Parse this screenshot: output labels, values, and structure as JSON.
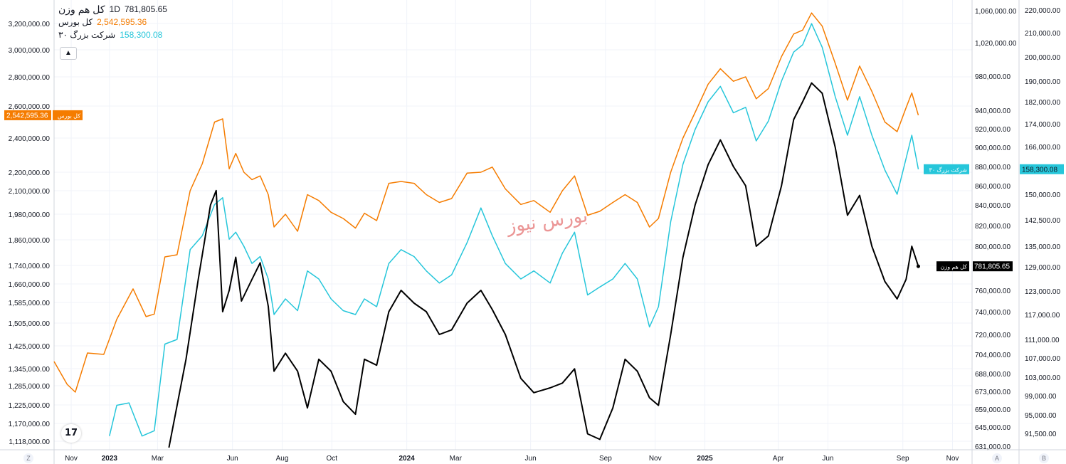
{
  "legend": {
    "main_title": "کل هم وزن",
    "interval": "1D",
    "main_value": "781,805.65",
    "series2_name": "کل بورس",
    "series2_value": "2,542,595.36",
    "series3_name": "شرکت بزرگ ۳۰",
    "series3_value": "158,300.08",
    "collapse_icon": "chevron-up-icon"
  },
  "watermark": "بورس نیوز",
  "corner_buttons": {
    "left": "Z",
    "mid": "A",
    "right": "B"
  },
  "colors": {
    "kol_boors": "#f57c00",
    "bozorg30": "#26c6da",
    "ham_vazn": "#000000",
    "grid": "#f0f3fa"
  },
  "chart_data": {
    "type": "line",
    "x_labels": [
      "Nov",
      "2023",
      "Mar",
      "Jun",
      "Aug",
      "Oct",
      "2024",
      "Mar",
      "Jun",
      "Sep",
      "Nov",
      "2025",
      "Apr",
      "Jun",
      "Sep",
      "Nov"
    ],
    "x_dates": [
      "2022-11-15",
      "2023-01-01",
      "2023-03-01",
      "2023-06-01",
      "2023-08-01",
      "2023-10-01",
      "2024-01-01",
      "2024-03-01",
      "2024-06-01",
      "2024-09-01",
      "2024-11-01",
      "2025-01-01",
      "2025-04-01",
      "2025-06-01",
      "2025-09-01",
      "2025-11-01"
    ],
    "left_axis_ticks": [
      "1,118,000.00",
      "1,170,000.00",
      "1,225,000.00",
      "1,285,000.00",
      "1,345,000.00",
      "1,425,000.00",
      "1,505,000.00",
      "1,585,000.00",
      "1,660,000.00",
      "1,740,000.00",
      "1,860,000.00",
      "1,980,000.00",
      "2,100,000.00",
      "2,200,000.00",
      "2,400,000.00",
      "2,600,000.00",
      "2,800,000.00",
      "3,000,000.00",
      "3,200,000.00"
    ],
    "left_tick_values": [
      1118000,
      1170000,
      1225000,
      1285000,
      1345000,
      1425000,
      1505000,
      1585000,
      1660000,
      1740000,
      1860000,
      1980000,
      2100000,
      2200000,
      2400000,
      2600000,
      2800000,
      3000000,
      3200000
    ],
    "right_a_ticks": [
      "631,000.00",
      "645,000.00",
      "659,000.00",
      "673,000.00",
      "688,000.00",
      "704,000.00",
      "720,000.00",
      "740,000.00",
      "760,000.00",
      "800,000.00",
      "820,000.00",
      "840,000.00",
      "860,000.00",
      "880,000.00",
      "900,000.00",
      "920,000.00",
      "940,000.00",
      "980,000.00",
      "1,020,000.00",
      "1,060,000.00"
    ],
    "right_a_values": [
      631000,
      645000,
      659000,
      673000,
      688000,
      704000,
      720000,
      740000,
      760000,
      800000,
      820000,
      840000,
      860000,
      880000,
      900000,
      920000,
      940000,
      980000,
      1020000,
      1060000
    ],
    "right_b_ticks": [
      "91,500.00",
      "95,000.00",
      "99,000.00",
      "103,000.00",
      "107,000.00",
      "111,000.00",
      "117,000.00",
      "123,000.00",
      "129,000.00",
      "135,000.00",
      "142,500.00",
      "150,000.00",
      "158,000.00",
      "166,000.00",
      "174,000.00",
      "182,000.00",
      "190,000.00",
      "200,000.00",
      "210,000.00",
      "220,000.00"
    ],
    "right_b_values": [
      91500,
      95000,
      99000,
      103000,
      107000,
      111000,
      117000,
      123000,
      129000,
      135000,
      142500,
      150000,
      158000,
      166000,
      174000,
      182000,
      190000,
      200000,
      210000,
      220000
    ],
    "series": [
      {
        "name": "کل بورس",
        "axis": "left",
        "last_label": "2,542,595.36",
        "last_tag": "کل بورس",
        "points": [
          [
            "2022-10-25",
            1370000
          ],
          [
            "2022-11-10",
            1290000
          ],
          [
            "2022-11-20",
            1265000
          ],
          [
            "2022-12-05",
            1400000
          ],
          [
            "2022-12-25",
            1395000
          ],
          [
            "2023-01-10",
            1520000
          ],
          [
            "2023-01-30",
            1640000
          ],
          [
            "2023-02-15",
            1530000
          ],
          [
            "2023-02-25",
            1540000
          ],
          [
            "2023-03-10",
            1780000
          ],
          [
            "2023-03-25",
            1790000
          ],
          [
            "2023-04-10",
            2100000
          ],
          [
            "2023-04-25",
            2250000
          ],
          [
            "2023-05-10",
            2500000
          ],
          [
            "2023-05-20",
            2520000
          ],
          [
            "2023-05-28",
            2220000
          ],
          [
            "2023-06-05",
            2310000
          ],
          [
            "2023-06-15",
            2200000
          ],
          [
            "2023-06-25",
            2160000
          ],
          [
            "2023-07-05",
            2180000
          ],
          [
            "2023-07-15",
            2080000
          ],
          [
            "2023-07-22",
            1920000
          ],
          [
            "2023-08-05",
            1980000
          ],
          [
            "2023-08-20",
            1900000
          ],
          [
            "2023-09-01",
            2080000
          ],
          [
            "2023-09-15",
            2050000
          ],
          [
            "2023-09-30",
            1990000
          ],
          [
            "2023-10-15",
            1960000
          ],
          [
            "2023-10-30",
            1915000
          ],
          [
            "2023-11-10",
            1985000
          ],
          [
            "2023-11-25",
            1950000
          ],
          [
            "2023-12-10",
            2140000
          ],
          [
            "2023-12-25",
            2150000
          ],
          [
            "2024-01-10",
            2140000
          ],
          [
            "2024-01-25",
            2080000
          ],
          [
            "2024-02-10",
            2040000
          ],
          [
            "2024-02-25",
            2060000
          ],
          [
            "2024-03-15",
            2195000
          ],
          [
            "2024-04-01",
            2200000
          ],
          [
            "2024-04-15",
            2230000
          ],
          [
            "2024-05-01",
            2110000
          ],
          [
            "2024-05-20",
            2030000
          ],
          [
            "2024-06-05",
            2050000
          ],
          [
            "2024-06-25",
            1990000
          ],
          [
            "2024-07-10",
            2100000
          ],
          [
            "2024-07-25",
            2180000
          ],
          [
            "2024-08-10",
            1975000
          ],
          [
            "2024-08-25",
            1995000
          ],
          [
            "2024-09-10",
            2040000
          ],
          [
            "2024-09-25",
            2080000
          ],
          [
            "2024-10-10",
            2040000
          ],
          [
            "2024-10-25",
            1920000
          ],
          [
            "2024-11-05",
            1960000
          ],
          [
            "2024-11-20",
            2200000
          ],
          [
            "2024-12-05",
            2400000
          ],
          [
            "2024-12-20",
            2560000
          ],
          [
            "2025-01-05",
            2750000
          ],
          [
            "2025-01-20",
            2860000
          ],
          [
            "2025-02-05",
            2770000
          ],
          [
            "2025-02-20",
            2800000
          ],
          [
            "2025-03-05",
            2650000
          ],
          [
            "2025-03-20",
            2720000
          ],
          [
            "2025-04-05",
            2950000
          ],
          [
            "2025-04-20",
            3120000
          ],
          [
            "2025-05-01",
            3150000
          ],
          [
            "2025-05-12",
            3280000
          ],
          [
            "2025-05-25",
            3180000
          ],
          [
            "2025-06-10",
            2900000
          ],
          [
            "2025-06-25",
            2640000
          ],
          [
            "2025-07-10",
            2880000
          ],
          [
            "2025-07-25",
            2700000
          ],
          [
            "2025-08-10",
            2500000
          ],
          [
            "2025-08-25",
            2440000
          ],
          [
            "2025-09-05",
            2590000
          ],
          [
            "2025-09-12",
            2690000
          ],
          [
            "2025-09-20",
            2542595
          ]
        ]
      },
      {
        "name": "شرکت بزرگ ۳۰",
        "axis": "right_b",
        "last_label": "158,300.08",
        "last_tag": "شرکت بزرگ ۳۰",
        "points": [
          [
            "2023-01-01",
            91000
          ],
          [
            "2023-01-10",
            97000
          ],
          [
            "2023-01-25",
            97500
          ],
          [
            "2023-02-10",
            91000
          ],
          [
            "2023-02-25",
            92000
          ],
          [
            "2023-03-10",
            110000
          ],
          [
            "2023-03-25",
            111000
          ],
          [
            "2023-04-10",
            134000
          ],
          [
            "2023-04-25",
            138000
          ],
          [
            "2023-05-10",
            147000
          ],
          [
            "2023-05-20",
            149000
          ],
          [
            "2023-05-28",
            137000
          ],
          [
            "2023-06-05",
            139000
          ],
          [
            "2023-06-15",
            135000
          ],
          [
            "2023-06-25",
            130000
          ],
          [
            "2023-07-05",
            132000
          ],
          [
            "2023-07-15",
            126000
          ],
          [
            "2023-07-22",
            117000
          ],
          [
            "2023-08-05",
            121000
          ],
          [
            "2023-08-20",
            118000
          ],
          [
            "2023-09-01",
            128000
          ],
          [
            "2023-09-15",
            126000
          ],
          [
            "2023-09-30",
            121000
          ],
          [
            "2023-10-15",
            118000
          ],
          [
            "2023-10-30",
            117000
          ],
          [
            "2023-11-10",
            121000
          ],
          [
            "2023-11-25",
            119000
          ],
          [
            "2023-12-10",
            130000
          ],
          [
            "2023-12-25",
            134000
          ],
          [
            "2024-01-10",
            132000
          ],
          [
            "2024-01-25",
            128000
          ],
          [
            "2024-02-10",
            125000
          ],
          [
            "2024-02-25",
            127000
          ],
          [
            "2024-03-15",
            136000
          ],
          [
            "2024-04-01",
            146000
          ],
          [
            "2024-04-15",
            138000
          ],
          [
            "2024-05-01",
            130000
          ],
          [
            "2024-05-20",
            126000
          ],
          [
            "2024-06-05",
            128000
          ],
          [
            "2024-06-25",
            125000
          ],
          [
            "2024-07-10",
            133000
          ],
          [
            "2024-07-25",
            139000
          ],
          [
            "2024-08-10",
            122000
          ],
          [
            "2024-08-25",
            124000
          ],
          [
            "2024-09-10",
            126000
          ],
          [
            "2024-09-25",
            130000
          ],
          [
            "2024-10-10",
            126000
          ],
          [
            "2024-10-25",
            114000
          ],
          [
            "2024-11-05",
            119000
          ],
          [
            "2024-11-20",
            142000
          ],
          [
            "2024-12-05",
            160000
          ],
          [
            "2024-12-20",
            172000
          ],
          [
            "2025-01-05",
            182000
          ],
          [
            "2025-01-20",
            188000
          ],
          [
            "2025-02-05",
            178000
          ],
          [
            "2025-02-20",
            180000
          ],
          [
            "2025-03-05",
            168000
          ],
          [
            "2025-03-20",
            175000
          ],
          [
            "2025-04-05",
            190000
          ],
          [
            "2025-04-20",
            202000
          ],
          [
            "2025-05-01",
            205000
          ],
          [
            "2025-05-12",
            214000
          ],
          [
            "2025-05-25",
            204000
          ],
          [
            "2025-06-10",
            184000
          ],
          [
            "2025-06-25",
            170000
          ],
          [
            "2025-07-10",
            184000
          ],
          [
            "2025-07-25",
            170000
          ],
          [
            "2025-08-10",
            158000
          ],
          [
            "2025-08-25",
            150000
          ],
          [
            "2025-09-05",
            162000
          ],
          [
            "2025-09-12",
            170000
          ],
          [
            "2025-09-20",
            158300
          ]
        ]
      },
      {
        "name": "کل هم وزن",
        "axis": "right_a",
        "last_label": "781,805.65",
        "last_tag": "کل هم وزن",
        "points": [
          [
            "2023-03-15",
            630000
          ],
          [
            "2023-04-05",
            700000
          ],
          [
            "2023-04-20",
            770000
          ],
          [
            "2023-05-05",
            840000
          ],
          [
            "2023-05-12",
            855000
          ],
          [
            "2023-05-20",
            740000
          ],
          [
            "2023-05-28",
            760000
          ],
          [
            "2023-06-05",
            790000
          ],
          [
            "2023-06-12",
            750000
          ],
          [
            "2023-06-25",
            770000
          ],
          [
            "2023-07-05",
            785000
          ],
          [
            "2023-07-15",
            745000
          ],
          [
            "2023-07-22",
            690000
          ],
          [
            "2023-08-05",
            705000
          ],
          [
            "2023-08-20",
            690000
          ],
          [
            "2023-09-01",
            660000
          ],
          [
            "2023-09-15",
            700000
          ],
          [
            "2023-09-30",
            690000
          ],
          [
            "2023-10-15",
            665000
          ],
          [
            "2023-10-30",
            655000
          ],
          [
            "2023-11-10",
            700000
          ],
          [
            "2023-11-25",
            695000
          ],
          [
            "2023-12-10",
            740000
          ],
          [
            "2023-12-25",
            760000
          ],
          [
            "2024-01-10",
            748000
          ],
          [
            "2024-01-25",
            740000
          ],
          [
            "2024-02-10",
            720000
          ],
          [
            "2024-02-25",
            724000
          ],
          [
            "2024-03-15",
            748000
          ],
          [
            "2024-04-01",
            760000
          ],
          [
            "2024-04-15",
            742000
          ],
          [
            "2024-05-01",
            720000
          ],
          [
            "2024-05-20",
            684000
          ],
          [
            "2024-06-05",
            672000
          ],
          [
            "2024-06-25",
            676000
          ],
          [
            "2024-07-10",
            680000
          ],
          [
            "2024-07-25",
            692000
          ],
          [
            "2024-08-10",
            640000
          ],
          [
            "2024-08-25",
            636000
          ],
          [
            "2024-09-10",
            660000
          ],
          [
            "2024-09-25",
            700000
          ],
          [
            "2024-10-10",
            690000
          ],
          [
            "2024-10-25",
            668000
          ],
          [
            "2024-11-05",
            662000
          ],
          [
            "2024-11-20",
            720000
          ],
          [
            "2024-12-05",
            790000
          ],
          [
            "2024-12-20",
            840000
          ],
          [
            "2025-01-05",
            882000
          ],
          [
            "2025-01-20",
            908000
          ],
          [
            "2025-02-05",
            880000
          ],
          [
            "2025-02-20",
            860000
          ],
          [
            "2025-03-05",
            800000
          ],
          [
            "2025-03-20",
            810000
          ],
          [
            "2025-04-05",
            860000
          ],
          [
            "2025-04-20",
            930000
          ],
          [
            "2025-05-01",
            950000
          ],
          [
            "2025-05-12",
            972000
          ],
          [
            "2025-05-25",
            960000
          ],
          [
            "2025-06-10",
            900000
          ],
          [
            "2025-06-25",
            830000
          ],
          [
            "2025-07-10",
            850000
          ],
          [
            "2025-07-25",
            800000
          ],
          [
            "2025-08-10",
            768000
          ],
          [
            "2025-08-25",
            752000
          ],
          [
            "2025-09-05",
            770000
          ],
          [
            "2025-09-12",
            800000
          ],
          [
            "2025-09-20",
            781805
          ]
        ]
      }
    ]
  }
}
